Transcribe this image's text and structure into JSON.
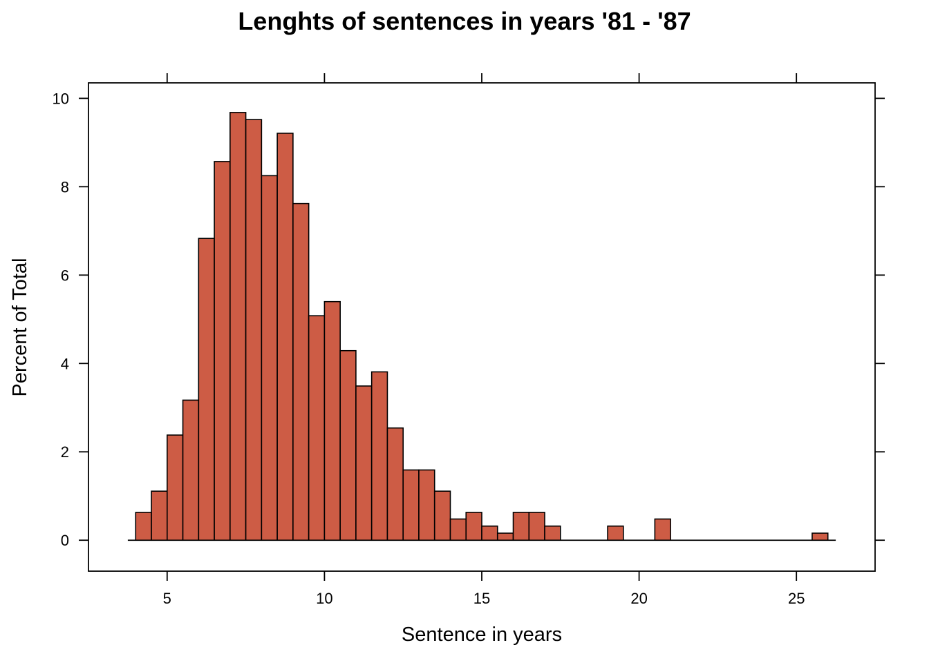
{
  "chart_data": {
    "type": "bar",
    "title": "Lenghts of sentences in years '81 - '87",
    "xlabel": "Sentence in years",
    "ylabel": "Percent of Total",
    "xlim": [
      2.5,
      27.5
    ],
    "ylim": [
      -0.7,
      10.35
    ],
    "x_ticks": [
      5,
      10,
      15,
      20,
      25
    ],
    "x_tick_labels": [
      "5",
      "10",
      "15",
      "20",
      "25"
    ],
    "y_ticks": [
      0,
      2,
      4,
      6,
      8,
      10
    ],
    "y_tick_labels": [
      "0",
      "2",
      "4",
      "6",
      "8",
      "10"
    ],
    "baseline_range": [
      3.75,
      26.25
    ],
    "bar_color": "#CD5C45",
    "grid": false,
    "bin_width": 0.5,
    "bins": [
      {
        "x0": 4.0,
        "x1": 4.5,
        "value": 0.63
      },
      {
        "x0": 4.5,
        "x1": 5.0,
        "value": 1.11
      },
      {
        "x0": 5.0,
        "x1": 5.5,
        "value": 2.38
      },
      {
        "x0": 5.5,
        "x1": 6.0,
        "value": 3.17
      },
      {
        "x0": 6.0,
        "x1": 6.5,
        "value": 6.83
      },
      {
        "x0": 6.5,
        "x1": 7.0,
        "value": 8.57
      },
      {
        "x0": 7.0,
        "x1": 7.5,
        "value": 9.68
      },
      {
        "x0": 7.5,
        "x1": 8.0,
        "value": 9.52
      },
      {
        "x0": 8.0,
        "x1": 8.5,
        "value": 8.25
      },
      {
        "x0": 8.5,
        "x1": 9.0,
        "value": 9.21
      },
      {
        "x0": 9.0,
        "x1": 9.5,
        "value": 7.62
      },
      {
        "x0": 9.5,
        "x1": 10.0,
        "value": 5.08
      },
      {
        "x0": 10.0,
        "x1": 10.5,
        "value": 5.4
      },
      {
        "x0": 10.5,
        "x1": 11.0,
        "value": 4.29
      },
      {
        "x0": 11.0,
        "x1": 11.5,
        "value": 3.49
      },
      {
        "x0": 11.5,
        "x1": 12.0,
        "value": 3.81
      },
      {
        "x0": 12.0,
        "x1": 12.5,
        "value": 2.54
      },
      {
        "x0": 12.5,
        "x1": 13.0,
        "value": 1.59
      },
      {
        "x0": 13.0,
        "x1": 13.5,
        "value": 1.59
      },
      {
        "x0": 13.5,
        "x1": 14.0,
        "value": 1.11
      },
      {
        "x0": 14.0,
        "x1": 14.5,
        "value": 0.48
      },
      {
        "x0": 14.5,
        "x1": 15.0,
        "value": 0.63
      },
      {
        "x0": 15.0,
        "x1": 15.5,
        "value": 0.32
      },
      {
        "x0": 15.5,
        "x1": 16.0,
        "value": 0.16
      },
      {
        "x0": 16.0,
        "x1": 16.5,
        "value": 0.63
      },
      {
        "x0": 16.5,
        "x1": 17.0,
        "value": 0.63
      },
      {
        "x0": 17.0,
        "x1": 17.5,
        "value": 0.32
      },
      {
        "x0": 19.0,
        "x1": 19.5,
        "value": 0.32
      },
      {
        "x0": 20.5,
        "x1": 21.0,
        "value": 0.48
      },
      {
        "x0": 25.5,
        "x1": 26.0,
        "value": 0.16
      }
    ]
  }
}
